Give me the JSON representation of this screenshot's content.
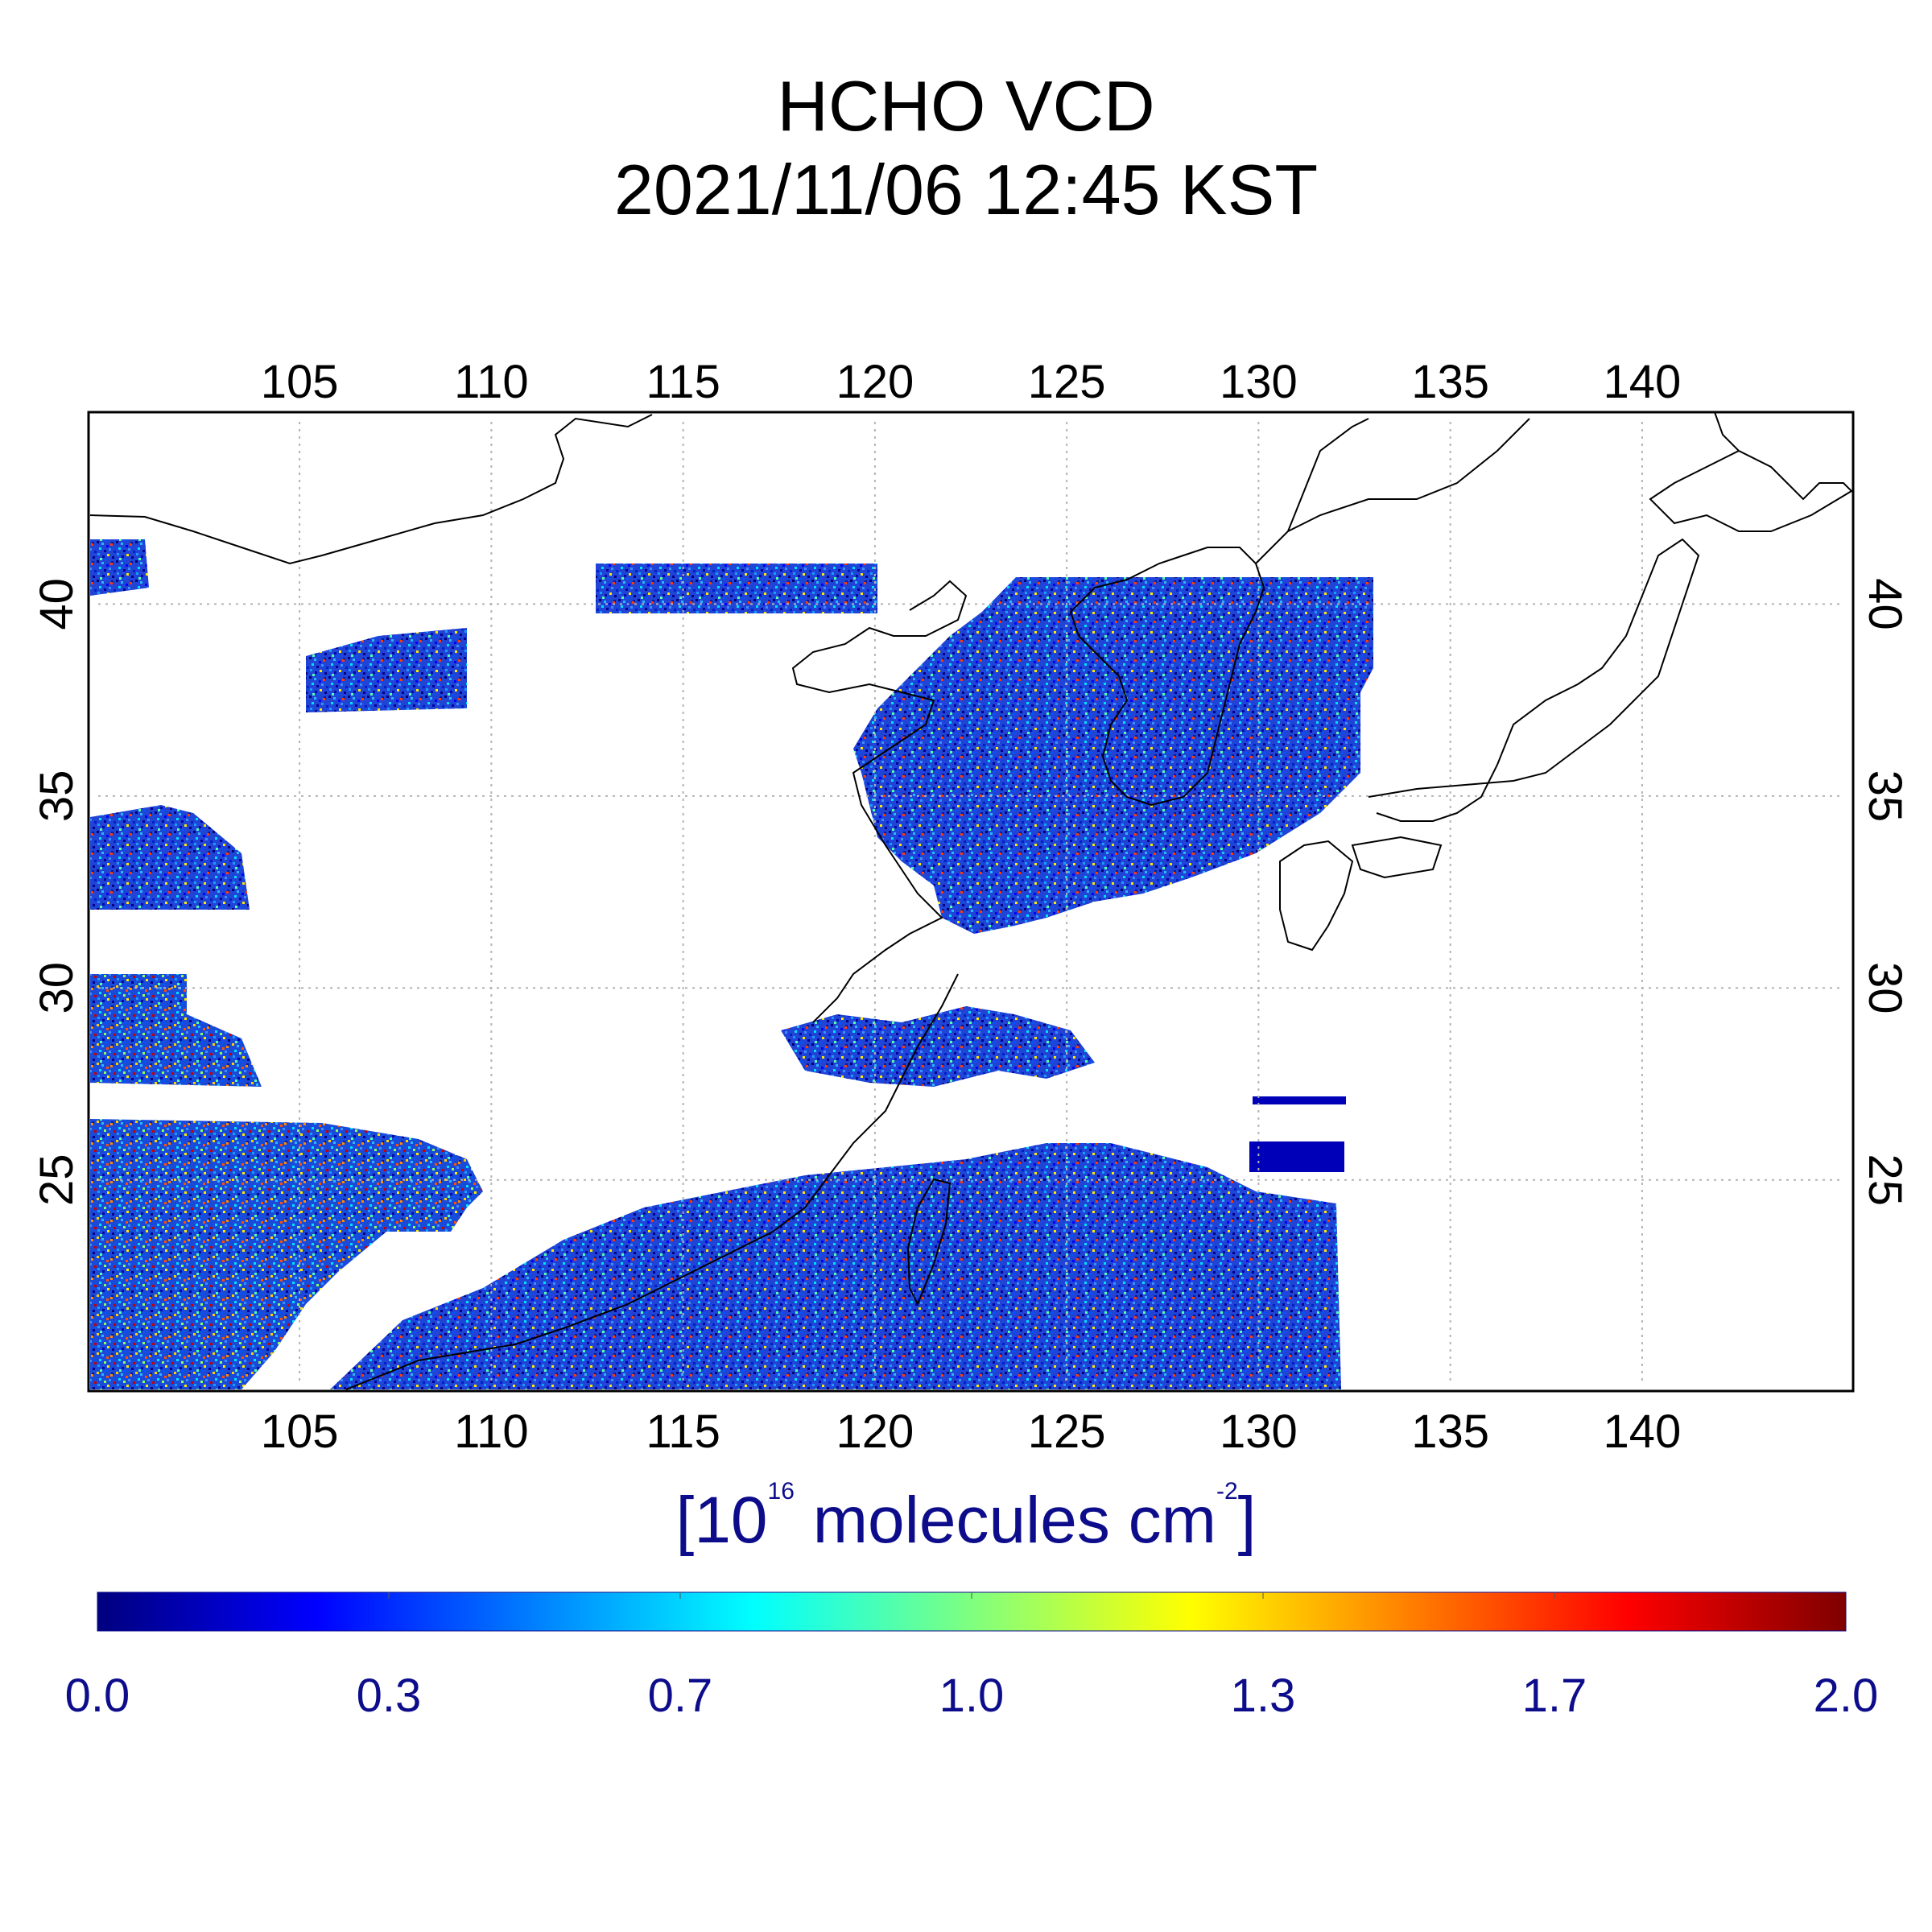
{
  "title": {
    "line1": "HCHO VCD",
    "line2": "2021/11/06 12:45 KST"
  },
  "map": {
    "projection": "lat-lon",
    "lon_range": [
      99.5,
      145.5
    ],
    "lat_range": [
      19.5,
      45.0
    ],
    "lon_ticks": [
      "105",
      "110",
      "115",
      "120",
      "125",
      "130",
      "135",
      "140"
    ],
    "lat_ticks": [
      "40",
      "35",
      "30",
      "25"
    ],
    "gridlines": "dotted",
    "coastline_color": "#000000",
    "no_data_color": "#ffffff",
    "regions_with_data": [
      "Korean Peninsula and Yellow Sea",
      "Northeast China",
      "East China Sea",
      "Taiwan and South China coast",
      "Western China (left edge)",
      "Philippine Sea west of 132E"
    ]
  },
  "colorbar": {
    "unit_label": {
      "prefix": "[10",
      "exp": "16",
      "mid": " molecules cm",
      "exp2": "-2",
      "suffix": "]"
    },
    "min": 0.0,
    "max": 2.0,
    "tick_labels": [
      "0.0",
      "0.3",
      "0.7",
      "1.0",
      "1.3",
      "1.7",
      "2.0"
    ],
    "colormap": "jet",
    "label_color": "#0d0d8c"
  }
}
